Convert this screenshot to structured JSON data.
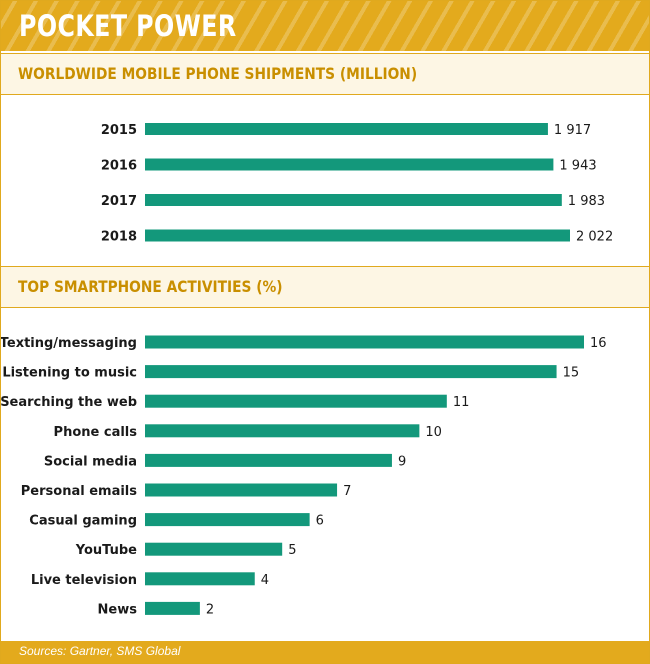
{
  "banner": {
    "title": "POCKET POWER"
  },
  "footer": {
    "source": "Sources: Gartner, SMS Global"
  },
  "colors": {
    "accent": "#e3aa1d",
    "bar": "#13987b",
    "header_text": "#c98f00",
    "label": "#1a1a1a"
  },
  "chart_data": [
    {
      "type": "bar",
      "orientation": "horizontal",
      "title": "WORLDWIDE MOBILE PHONE SHIPMENTS (MILLION)",
      "categories": [
        "2015",
        "2016",
        "2017",
        "2018"
      ],
      "values": [
        1917,
        1943,
        1983,
        2022
      ],
      "value_labels": [
        "1 917",
        "1 943",
        "1 983",
        "2 022"
      ],
      "xlim": [
        0,
        2022
      ],
      "grid": false,
      "legend": "none"
    },
    {
      "type": "bar",
      "orientation": "horizontal",
      "title": "TOP SMARTPHONE ACTIVITIES (%)",
      "categories": [
        "Texting/messaging",
        "Listening to music",
        "Searching the web",
        "Phone calls",
        "Social media",
        "Personal emails",
        "Casual gaming",
        "YouTube",
        "Live television",
        "News"
      ],
      "values": [
        16,
        15,
        11,
        10,
        9,
        7,
        6,
        5,
        4,
        2
      ],
      "value_labels": [
        "16",
        "15",
        "11",
        "10",
        "9",
        "7",
        "6",
        "5",
        "4",
        "2"
      ],
      "xlim": [
        0,
        16
      ],
      "grid": false,
      "legend": "none"
    }
  ]
}
